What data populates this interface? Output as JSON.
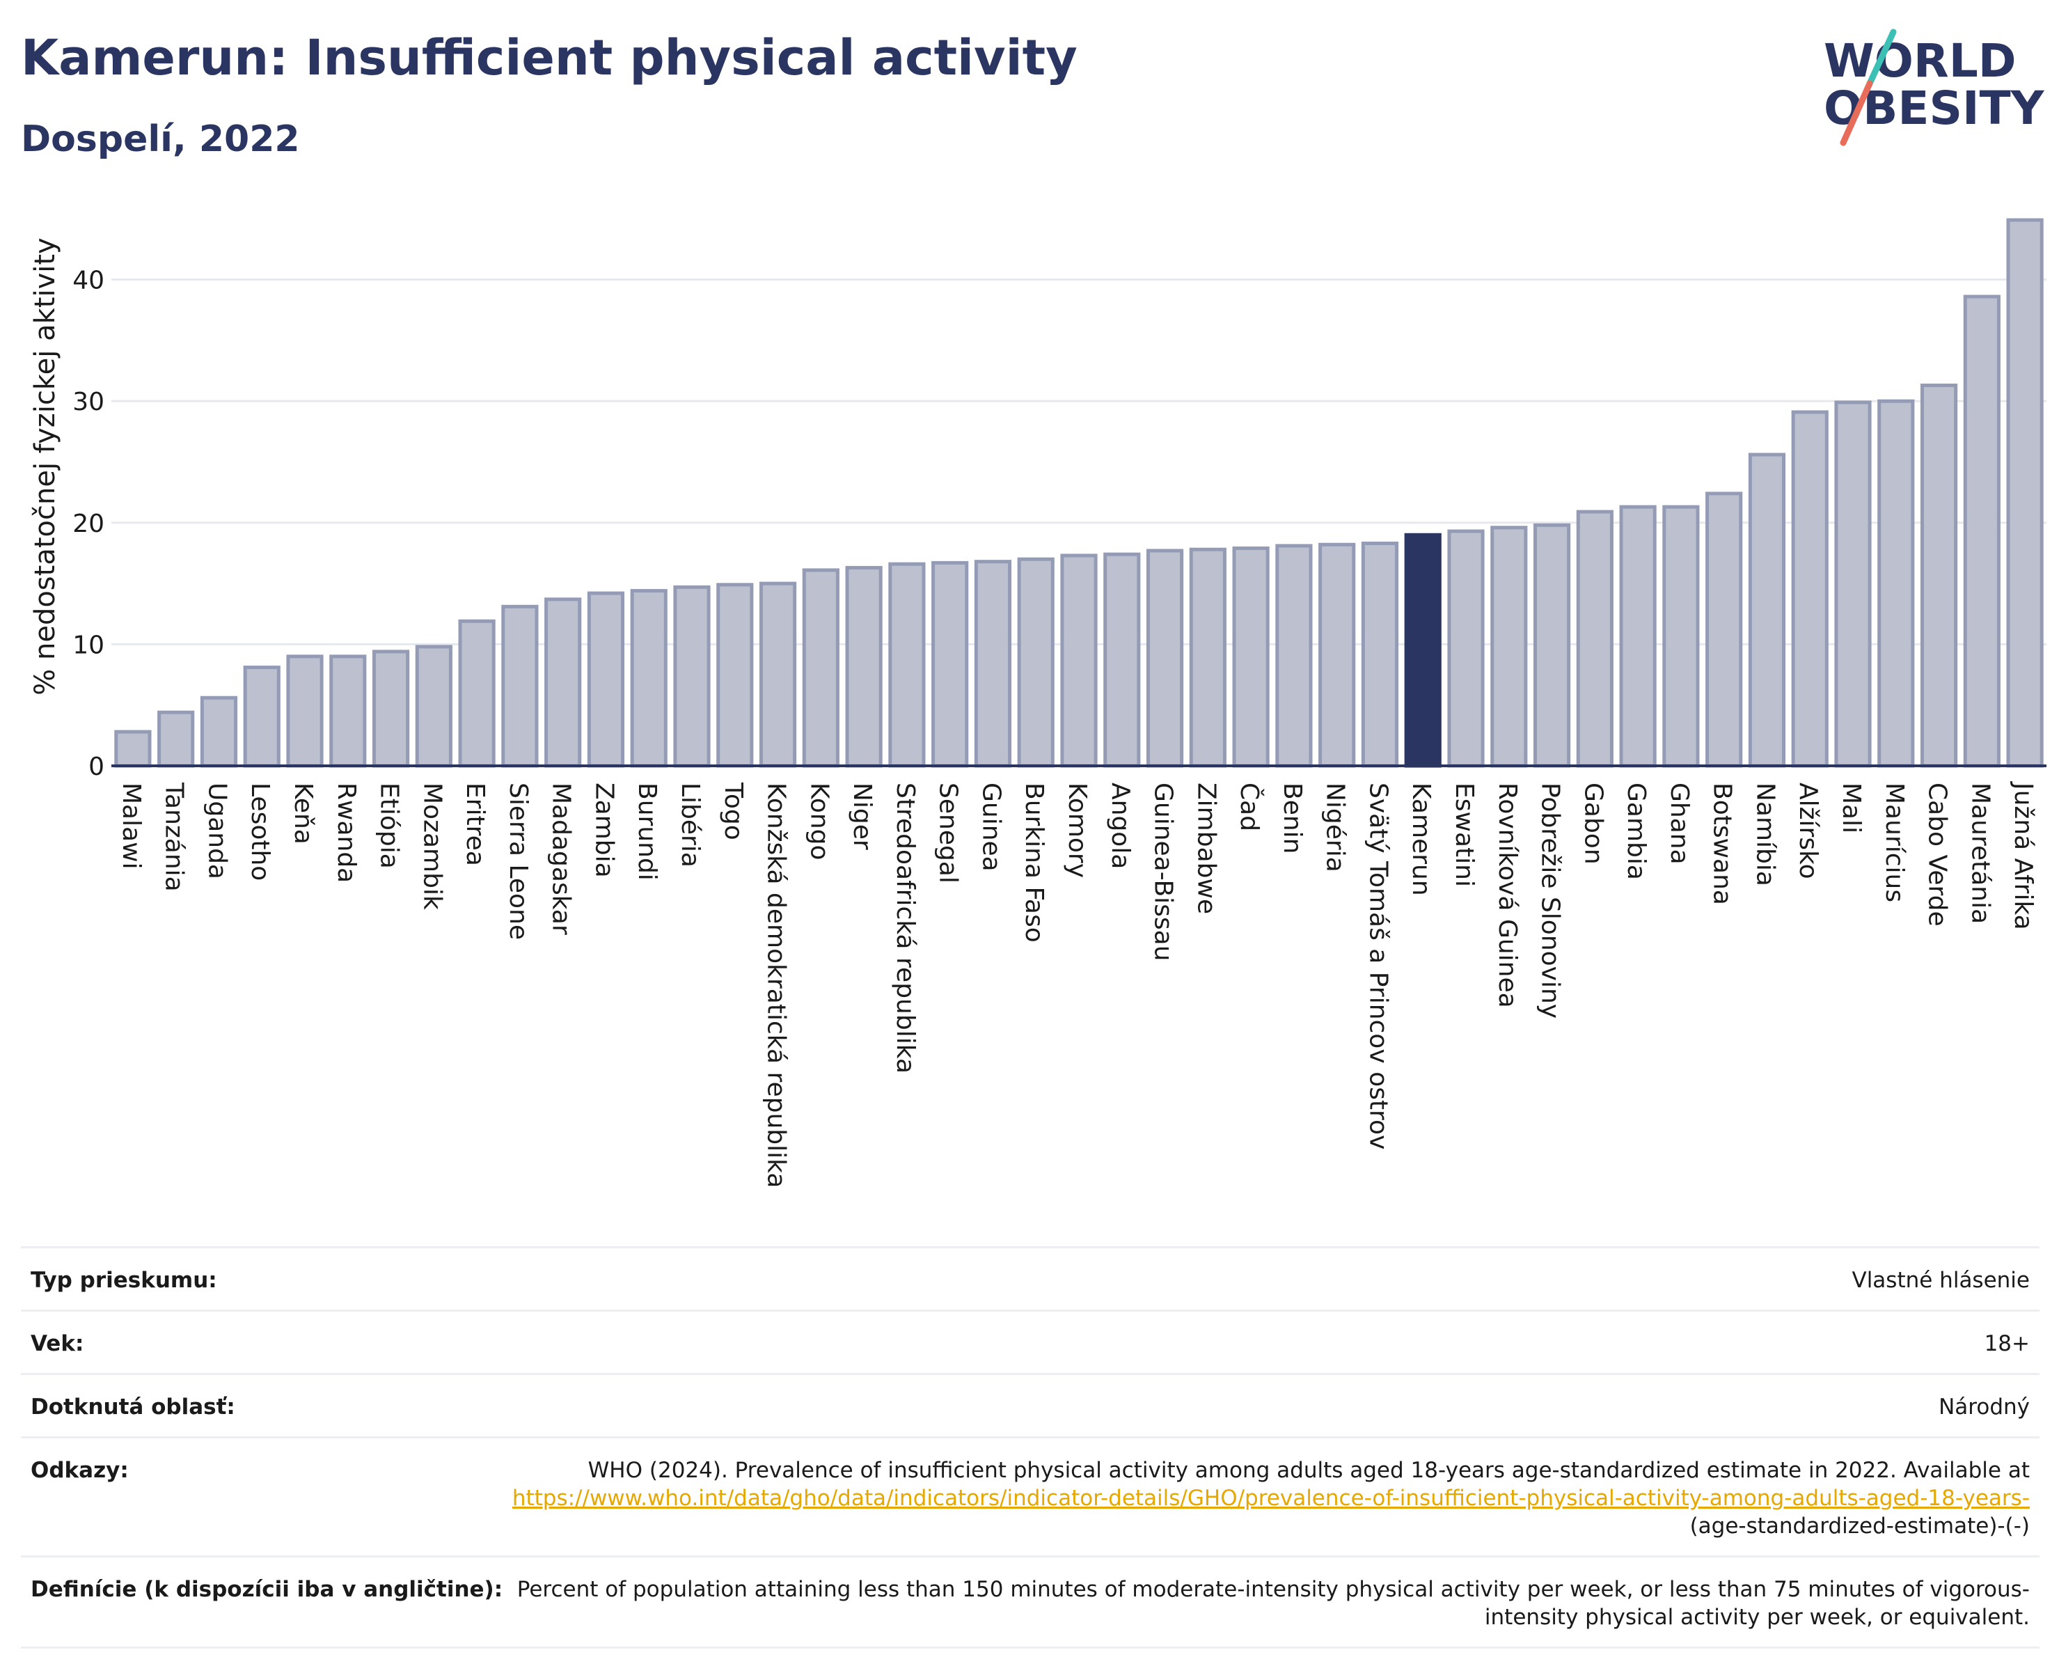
{
  "header": {
    "title": "Kamerun: Insufficient physical activity",
    "subtitle": "Dospelí, 2022",
    "logo_line1": "WORLD",
    "logo_line2": "OBESITY"
  },
  "colors": {
    "bar": "#bcc0cf",
    "bar_stroke": "#949bb5",
    "highlight": "#2b3561",
    "title": "#2b3561",
    "link": "#e6a800",
    "logo_teal": "#3cbfb4",
    "logo_coral": "#e86c5a"
  },
  "chart_data": {
    "type": "bar",
    "ylabel": "% nedostatočnej fyzickej aktivity",
    "ylim": [
      0,
      45
    ],
    "yticks": [
      0,
      10,
      20,
      30,
      40
    ],
    "grid": true,
    "highlight_category": "Kamerun",
    "categories": [
      "Malawi",
      "Tanzánia",
      "Uganda",
      "Lesotho",
      "Keňa",
      "Rwanda",
      "Etiópia",
      "Mozambik",
      "Eritrea",
      "Sierra Leone",
      "Madagaskar",
      "Zambia",
      "Burundi",
      "Libéria",
      "Togo",
      "Konžská demokratická republika",
      "Kongo",
      "Niger",
      "Stredoafrická republika",
      "Senegal",
      "Guinea",
      "Burkina Faso",
      "Komory",
      "Angola",
      "Guinea-Bissau",
      "Zimbabwe",
      "Čad",
      "Benin",
      "Nigéria",
      "Svätý Tomáš a Princov ostrov",
      "Kamerun",
      "Eswatini",
      "Rovníková Guinea",
      "Pobrežie Slonoviny",
      "Gabon",
      "Gambia",
      "Ghana",
      "Botswana",
      "Namíbia",
      "Alžírsko",
      "Mali",
      "Maurícius",
      "Cabo Verde",
      "Mauretánia",
      "Južná Afrika"
    ],
    "values": [
      2.8,
      4.4,
      5.6,
      8.1,
      9.0,
      9.0,
      9.4,
      9.8,
      11.9,
      13.1,
      13.7,
      14.2,
      14.4,
      14.7,
      14.9,
      15.0,
      16.1,
      16.3,
      16.6,
      16.7,
      16.8,
      17.0,
      17.3,
      17.4,
      17.7,
      17.8,
      17.9,
      18.1,
      18.2,
      18.3,
      19.0,
      19.3,
      19.6,
      19.8,
      20.9,
      21.3,
      21.3,
      22.4,
      25.6,
      29.1,
      29.9,
      30.0,
      31.3,
      38.6,
      44.9
    ]
  },
  "info": {
    "rows": [
      {
        "label": "Typ prieskumu:",
        "value": "Vlastné hlásenie"
      },
      {
        "label": "Vek:",
        "value": "18+"
      },
      {
        "label": "Dotknutá oblasť:",
        "value": "Národný"
      }
    ],
    "references": {
      "label": "Odkazy:",
      "text": "WHO (2024). Prevalence of insufficient physical activity among adults aged 18-years age-standardized estimate in 2022. Available at",
      "link": "https://www.who.int/data/gho/data/indicators/indicator-details/GHO/prevalence-of-insufficient-physical-activity-among-adults-aged-18-years-",
      "suffix": "(age-standardized-estimate)-(-)"
    },
    "definitions": {
      "label": "Definície (k dispozícii iba v angličtine):",
      "value": "Percent of population attaining less than 150 minutes of moderate-intensity physical activity per week, or less than 75 minutes of vigorous-intensity physical activity per week, or equivalent."
    }
  }
}
